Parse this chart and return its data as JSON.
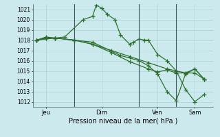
{
  "bg_color": "#cceaed",
  "grid_color": "#aad4d8",
  "line_color": "#2d6e2d",
  "ylim": [
    1011.5,
    1021.5
  ],
  "yticks": [
    1012,
    1013,
    1014,
    1015,
    1016,
    1017,
    1018,
    1019,
    1020,
    1021
  ],
  "day_labels": [
    "Jeu",
    "Dim",
    "Ven",
    "Sam"
  ],
  "day_positions": [
    0.5,
    3.5,
    6.5,
    8.5
  ],
  "vline_positions": [
    2.0,
    5.5,
    7.5
  ],
  "line1_x": [
    0.0,
    0.5,
    1.0,
    1.5,
    2.5,
    3.0,
    3.2,
    3.5,
    3.8,
    4.2,
    4.5,
    5.0,
    5.2,
    5.5,
    5.8,
    6.0,
    6.5,
    7.0,
    7.5,
    8.0,
    8.5,
    9.0
  ],
  "line1_y": [
    1018.0,
    1018.3,
    1018.2,
    1018.3,
    1020.0,
    1020.3,
    1021.4,
    1021.1,
    1020.5,
    1020.0,
    1018.5,
    1017.6,
    1017.8,
    1018.1,
    1018.0,
    1018.0,
    1016.6,
    1016.0,
    1015.0,
    1013.2,
    1012.0,
    1012.7
  ],
  "line2_x": [
    0.0,
    0.5,
    1.0,
    2.0,
    3.0,
    4.0,
    5.0,
    6.0,
    7.0,
    7.5,
    8.0,
    8.5,
    9.0
  ],
  "line2_y": [
    1018.0,
    1018.2,
    1018.2,
    1018.0,
    1017.6,
    1017.0,
    1016.4,
    1015.8,
    1015.2,
    1015.0,
    1014.8,
    1014.8,
    1014.2
  ],
  "line3_x": [
    0.0,
    0.5,
    1.0,
    2.0,
    3.0,
    4.0,
    5.0,
    6.0,
    6.5,
    7.0,
    7.5,
    8.0,
    8.5,
    9.0
  ],
  "line3_y": [
    1018.0,
    1018.2,
    1018.2,
    1018.0,
    1017.6,
    1016.8,
    1015.9,
    1015.2,
    1014.9,
    1015.1,
    1014.8,
    1014.8,
    1015.2,
    1014.2
  ],
  "line4_x": [
    0.0,
    1.0,
    2.0,
    3.0,
    4.5,
    5.5,
    6.0,
    6.5,
    7.0,
    7.5,
    8.0,
    8.5,
    9.0
  ],
  "line4_y": [
    1018.0,
    1018.2,
    1018.0,
    1017.8,
    1016.5,
    1016.0,
    1015.5,
    1014.7,
    1013.0,
    1012.1,
    1014.7,
    1015.2,
    1014.2
  ],
  "xlabel": "Pression niveau de la mer( hPa )",
  "marker": "+",
  "markersize": 4,
  "linewidth": 0.9
}
